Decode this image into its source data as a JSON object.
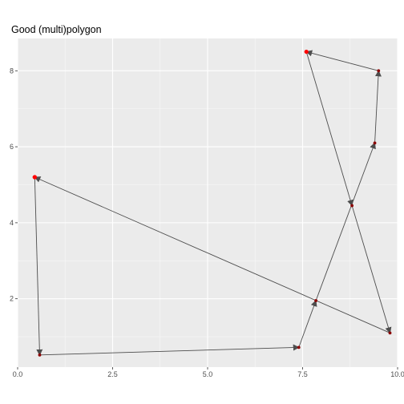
{
  "chart_data": {
    "type": "line",
    "title": "Good (multi)polygon",
    "xlabel": "",
    "ylabel": "",
    "xlim": [
      0,
      10
    ],
    "ylim": [
      0.2,
      8.85
    ],
    "grid": true,
    "x_ticks": [
      0.0,
      2.5,
      5.0,
      7.5,
      10.0
    ],
    "x_tick_labels": [
      "0.0",
      "2.5",
      "5.0",
      "7.5",
      "10.0"
    ],
    "y_ticks": [
      2,
      4,
      6,
      8
    ],
    "y_tick_labels": [
      "2",
      "4",
      "6",
      "8"
    ],
    "series": [
      {
        "points": [
          {
            "x": 0.45,
            "y": 5.2,
            "start": true
          },
          {
            "x": 0.58,
            "y": 0.52
          },
          {
            "x": 7.4,
            "y": 0.72
          },
          {
            "x": 7.85,
            "y": 1.95
          },
          {
            "x": 9.4,
            "y": 6.1
          },
          {
            "x": 9.5,
            "y": 8.0
          },
          {
            "x": 7.6,
            "y": 8.5,
            "start": true
          },
          {
            "x": 8.8,
            "y": 4.45
          },
          {
            "x": 9.8,
            "y": 1.1
          },
          {
            "x": 0.45,
            "y": 5.2,
            "start": true
          }
        ]
      }
    ],
    "colors": {
      "panel": "#ebebeb",
      "grid_major": "#ffffff",
      "line": "#4d4d4d",
      "point": "#8b0000",
      "start_point": "#ff0000"
    }
  }
}
